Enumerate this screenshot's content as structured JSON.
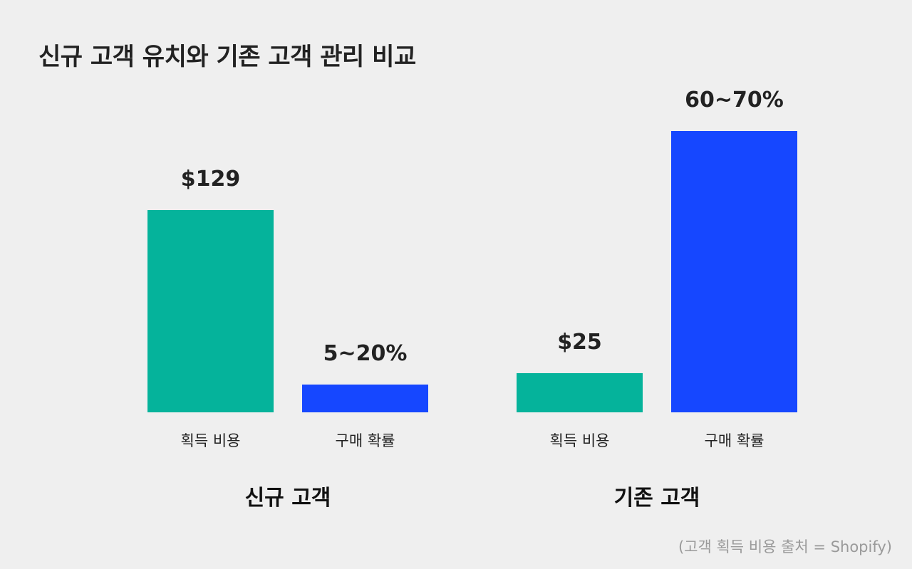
{
  "title": "신규 고객 유치와 기존 고객 관리 비교",
  "source_note": "(고객 획득 비용 출처 = Shopify)",
  "colors": {
    "background": "#efefef",
    "acquisition_cost": "#05b39b",
    "purchase_probability": "#1647ff",
    "text": "#222222",
    "note": "#9a9a9a"
  },
  "chart_data": {
    "type": "bar",
    "title": "신규 고객 유치와 기존 고객 관리 비교",
    "groups": [
      {
        "name": "신규 고객",
        "bars": [
          {
            "category": "획득 비용",
            "label": "$129",
            "value": 129,
            "unit": "$",
            "color": "#05b39b"
          },
          {
            "category": "구매 확률",
            "label": "5~20%",
            "value": 12.5,
            "range": [
              5,
              20
            ],
            "unit": "%",
            "color": "#1647ff"
          }
        ]
      },
      {
        "name": "기존 고객",
        "bars": [
          {
            "category": "획득 비용",
            "label": "$25",
            "value": 25,
            "unit": "$",
            "color": "#05b39b"
          },
          {
            "category": "구매 확률",
            "label": "60~70%",
            "value": 65,
            "range": [
              60,
              70
            ],
            "unit": "%",
            "color": "#1647ff"
          }
        ]
      }
    ],
    "grid": false,
    "legend": "none"
  }
}
